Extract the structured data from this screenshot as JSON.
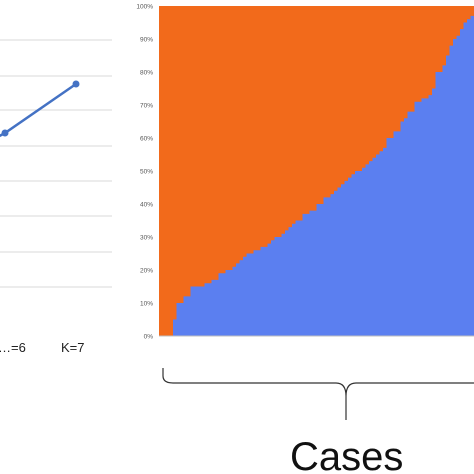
{
  "chart_data": [
    {
      "type": "line",
      "categories": [
        "…=6",
        "K=7"
      ],
      "series": [
        {
          "values": [
            0.62,
            0.77
          ]
        }
      ],
      "color": "#4472C4",
      "grid": true,
      "partially_visible": true
    },
    {
      "type": "area",
      "xlabel": "Cases",
      "yticks": [
        "0%",
        "10%",
        "20%",
        "30%",
        "40%",
        "50%",
        "60%",
        "70%",
        "80%",
        "90%",
        "100%"
      ],
      "ylim": [
        0,
        100
      ],
      "colors": {
        "lower": "#5B7FF0",
        "upper": "#F26A1B"
      },
      "lower_share_pct": [
        0,
        0,
        0,
        0,
        5,
        10,
        10,
        12,
        12,
        15,
        15,
        15,
        15,
        16,
        16,
        17,
        17,
        19,
        19,
        20,
        20,
        21,
        22,
        23,
        24,
        25,
        25,
        26,
        26,
        27,
        27,
        28,
        29,
        30,
        30,
        31,
        32,
        33,
        34,
        35,
        35,
        37,
        37,
        38,
        38,
        40,
        40,
        42,
        42,
        43,
        44,
        45,
        46,
        47,
        48,
        49,
        50,
        50,
        51,
        52,
        53,
        54,
        55,
        56,
        57,
        60,
        60,
        62,
        62,
        65,
        66,
        68,
        68,
        71,
        71,
        72,
        72,
        73,
        75,
        80,
        80,
        82,
        85,
        88,
        90,
        91,
        93,
        95,
        96,
        97
      ]
    }
  ]
}
